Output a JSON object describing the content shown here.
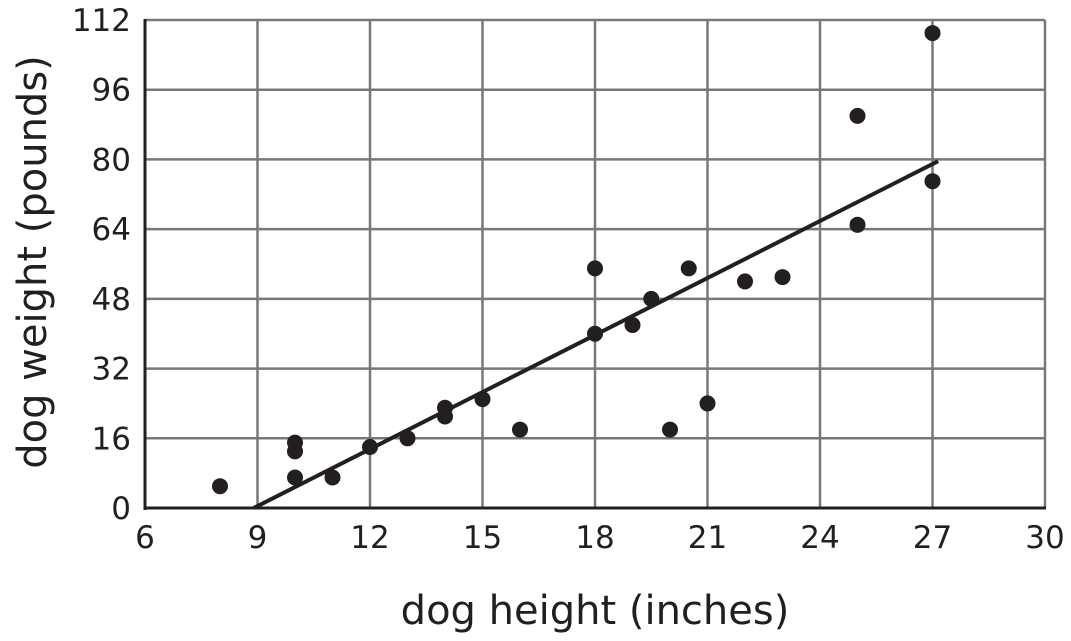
{
  "chart_data": {
    "type": "scatter",
    "title": "",
    "xlabel": "dog height (inches)",
    "ylabel": "dog weight (pounds)",
    "xlim": [
      6,
      30
    ],
    "ylim": [
      0,
      112
    ],
    "xticks": [
      "6",
      "9",
      "12",
      "15",
      "18",
      "21",
      "24",
      "27",
      "30"
    ],
    "yticks": [
      "0",
      "16",
      "32",
      "48",
      "64",
      "80",
      "96",
      "112"
    ],
    "grid": true,
    "legend": "none",
    "points": [
      {
        "x": 8,
        "y": 5
      },
      {
        "x": 10,
        "y": 15
      },
      {
        "x": 10,
        "y": 13
      },
      {
        "x": 10,
        "y": 7
      },
      {
        "x": 11,
        "y": 7
      },
      {
        "x": 12,
        "y": 14
      },
      {
        "x": 13,
        "y": 16
      },
      {
        "x": 14,
        "y": 23
      },
      {
        "x": 14,
        "y": 21
      },
      {
        "x": 15,
        "y": 25
      },
      {
        "x": 16,
        "y": 18
      },
      {
        "x": 18,
        "y": 55
      },
      {
        "x": 18,
        "y": 40
      },
      {
        "x": 19,
        "y": 42
      },
      {
        "x": 19.5,
        "y": 48
      },
      {
        "x": 20,
        "y": 18
      },
      {
        "x": 20.5,
        "y": 55
      },
      {
        "x": 21,
        "y": 24
      },
      {
        "x": 22,
        "y": 52
      },
      {
        "x": 23,
        "y": 53
      },
      {
        "x": 25,
        "y": 90
      },
      {
        "x": 25,
        "y": 65
      },
      {
        "x": 27,
        "y": 109
      },
      {
        "x": 27,
        "y": 75
      }
    ],
    "trend_line": {
      "x": [
        8.9,
        27.15
      ],
      "y": [
        0,
        79.6
      ]
    },
    "colors": {
      "points": "#231f20",
      "grid": "#77787b",
      "axis": "#231f20"
    }
  }
}
